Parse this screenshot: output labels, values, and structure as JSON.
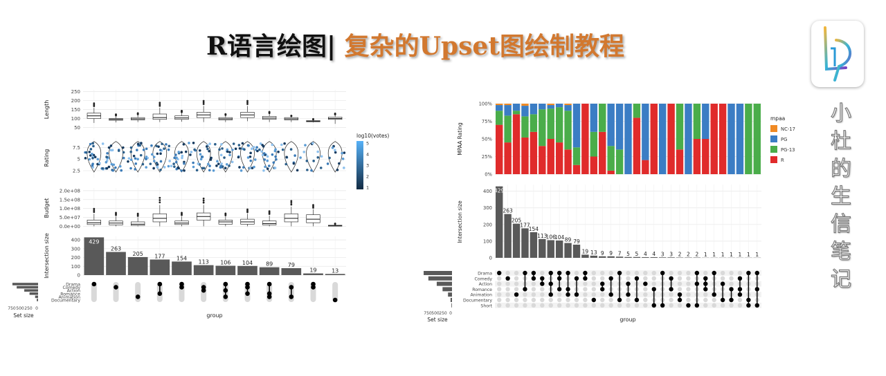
{
  "title": {
    "main": "R语言绘图|",
    "accent": " 复杂的Upset图绘制教程"
  },
  "side_text": [
    "小",
    "杜",
    "的",
    "生",
    "信",
    "笔",
    "记"
  ],
  "colors": {
    "title_accent": "#d2782f",
    "bar": "#595959",
    "dot_active": "#000000",
    "dot_inactive": "#d9d9d9",
    "nc17": "#f08a24",
    "pg": "#3b7dc4",
    "pg13": "#4aad4a",
    "r": "#e02b2b"
  },
  "chart_data": [
    {
      "type": "bar",
      "panel": "left-upset",
      "xlabel": "group",
      "set_size_label": "Set size",
      "set_size_ticks": [
        "750",
        "500",
        "250",
        "0"
      ],
      "sets": [
        "Drama",
        "Comedy",
        "Action",
        "Romance",
        "Animation",
        "Documentary"
      ],
      "set_sizes": [
        780,
        650,
        420,
        260,
        90,
        40
      ],
      "intersection": {
        "ylabel": "Intersection size",
        "yticks": [
          0,
          100,
          200,
          300,
          400
        ],
        "ylim": [
          0,
          440
        ],
        "values": [
          429,
          263,
          205,
          177,
          154,
          113,
          106,
          104,
          89,
          79,
          19,
          13
        ],
        "memberships": [
          [
            0
          ],
          [
            1
          ],
          [
            4
          ],
          [
            0,
            3
          ],
          [
            0,
            1
          ],
          [
            1,
            2
          ],
          [
            0,
            2,
            4
          ],
          [
            0,
            1,
            3
          ],
          [
            0,
            3,
            4
          ],
          [
            1,
            4
          ],
          [
            0,
            1
          ],
          [
            5
          ]
        ]
      },
      "length": {
        "ylabel": "Length",
        "yticks": [
          50,
          100,
          150,
          200,
          250
        ],
        "ylim": [
          40,
          260
        ],
        "boxes": [
          [
            75,
            100,
            115,
            130,
            160
          ],
          [
            78,
            90,
            95,
            100,
            112
          ],
          [
            80,
            92,
            98,
            105,
            118
          ],
          [
            80,
            95,
            105,
            125,
            160
          ],
          [
            82,
            95,
            103,
            115,
            130
          ],
          [
            80,
            105,
            120,
            135,
            170
          ],
          [
            80,
            92,
            98,
            105,
            115
          ],
          [
            85,
            105,
            120,
            135,
            170
          ],
          [
            80,
            95,
            102,
            112,
            125
          ],
          [
            80,
            92,
            98,
            105,
            110
          ],
          [
            78,
            82,
            85,
            88,
            92
          ],
          [
            70,
            95,
            100,
            108,
            118
          ]
        ]
      },
      "rating": {
        "ylabel": "Rating",
        "yticks": [
          2.5,
          5.0,
          7.5
        ],
        "ylim": [
          1,
          9.5
        ],
        "color_legend_title": "log10(votes)",
        "color_legend_ticks": [
          1,
          2,
          3,
          4,
          5
        ]
      },
      "budget": {
        "ylabel": "Budget",
        "yticks": [
          "0.0e+00",
          "5.0e+07",
          "1.0e+08",
          "1.5e+08",
          "2.0e+08"
        ],
        "tick_values": [
          0,
          50,
          100,
          150,
          200
        ],
        "ylim": [
          -10,
          215
        ],
        "boxes": [
          [
            0,
            10,
            20,
            35,
            70
          ],
          [
            0,
            8,
            18,
            30,
            55
          ],
          [
            0,
            5,
            12,
            25,
            50
          ],
          [
            0,
            25,
            45,
            70,
            120
          ],
          [
            0,
            10,
            18,
            30,
            55
          ],
          [
            0,
            35,
            55,
            75,
            120
          ],
          [
            0,
            12,
            25,
            35,
            55
          ],
          [
            0,
            12,
            25,
            40,
            70
          ],
          [
            0,
            8,
            15,
            30,
            60
          ],
          [
            0,
            25,
            45,
            70,
            110
          ],
          [
            0,
            20,
            40,
            65,
            95
          ],
          [
            0,
            1,
            3,
            6,
            10
          ]
        ]
      }
    },
    {
      "type": "bar",
      "panel": "right-upset",
      "xlabel": "group",
      "set_size_label": "Set size",
      "set_size_ticks": [
        "750",
        "500",
        "250",
        "0"
      ],
      "sets": [
        "Drama",
        "Comedy",
        "Action",
        "Romance",
        "Animation",
        "Documentary",
        "Short"
      ],
      "set_sizes": [
        780,
        650,
        420,
        260,
        110,
        40,
        15
      ],
      "intersection": {
        "ylabel": "Intersection size",
        "yticks": [
          0,
          100,
          200,
          300,
          400
        ],
        "ylim": [
          0,
          440
        ],
        "values": [
          429,
          263,
          205,
          177,
          154,
          113,
          106,
          104,
          89,
          79,
          19,
          13,
          9,
          9,
          7,
          5,
          5,
          4,
          4,
          3,
          3,
          2,
          2,
          2,
          1,
          1,
          1,
          1,
          1,
          1,
          1
        ],
        "memberships": [
          [
            0
          ],
          [
            1
          ],
          [
            4
          ],
          [
            0,
            3
          ],
          [
            0,
            1
          ],
          [
            1,
            2
          ],
          [
            0,
            2,
            4
          ],
          [
            0,
            1,
            3
          ],
          [
            0,
            3,
            4
          ],
          [
            1,
            4
          ],
          [
            0,
            1
          ],
          [
            5
          ],
          [
            2,
            3
          ],
          [
            1,
            4
          ],
          [
            0,
            5
          ],
          [
            2,
            4
          ],
          [
            1,
            5
          ],
          [
            2
          ],
          [
            3,
            6
          ],
          [
            0,
            6
          ],
          [
            1,
            3
          ],
          [
            4,
            5
          ],
          [
            6
          ],
          [
            0,
            2,
            6
          ],
          [
            1,
            2,
            3
          ],
          [
            0,
            4
          ],
          [
            2,
            5
          ],
          [
            3,
            5
          ],
          [
            1,
            3,
            4
          ],
          [
            0,
            5,
            6
          ],
          [
            0,
            3,
            6
          ]
        ]
      },
      "mpaa": {
        "ylabel": "MPAA Rating",
        "yticks": [
          "0%",
          "25%",
          "50%",
          "75%",
          "100%"
        ],
        "legend_title": "mpaa",
        "categories": [
          "NC-17",
          "PG",
          "PG-13",
          "R"
        ],
        "stacks": [
          [
            0.02,
            0.08,
            0.2,
            0.7
          ],
          [
            0.02,
            0.15,
            0.38,
            0.45
          ],
          [
            0,
            0.1,
            0.05,
            0.85
          ],
          [
            0.03,
            0.15,
            0.3,
            0.52
          ],
          [
            0,
            0.15,
            0.25,
            0.6
          ],
          [
            0,
            0.08,
            0.52,
            0.4
          ],
          [
            0.02,
            0.05,
            0.43,
            0.5
          ],
          [
            0,
            0.05,
            0.5,
            0.45
          ],
          [
            0.02,
            0.08,
            0.55,
            0.35
          ],
          [
            0,
            0.62,
            0.25,
            0.13
          ],
          [
            0,
            0,
            0,
            1
          ],
          [
            0,
            0.4,
            0.35,
            0.25
          ],
          [
            0,
            0,
            0.4,
            0.6
          ],
          [
            0,
            0.6,
            0.35,
            0.05
          ],
          [
            0,
            0.65,
            0.35,
            0
          ],
          [
            0,
            1,
            0,
            0
          ],
          [
            0,
            0,
            0.2,
            0.8
          ],
          [
            0,
            0.8,
            0,
            0.2
          ],
          [
            0,
            0,
            0,
            1
          ],
          [
            0,
            1,
            0,
            0
          ],
          [
            0,
            0,
            0,
            1
          ],
          [
            0,
            0,
            0.65,
            0.35
          ],
          [
            0,
            1,
            0,
            0
          ],
          [
            0,
            0,
            0.5,
            0.5
          ],
          [
            0,
            0.5,
            0,
            0.5
          ],
          [
            0,
            0,
            0,
            1
          ],
          [
            0,
            0,
            0,
            1
          ],
          [
            0,
            1,
            0,
            0
          ],
          [
            0,
            1,
            0,
            0
          ],
          [
            0,
            0,
            1,
            0
          ],
          [
            0,
            0,
            1,
            0
          ]
        ]
      }
    }
  ]
}
